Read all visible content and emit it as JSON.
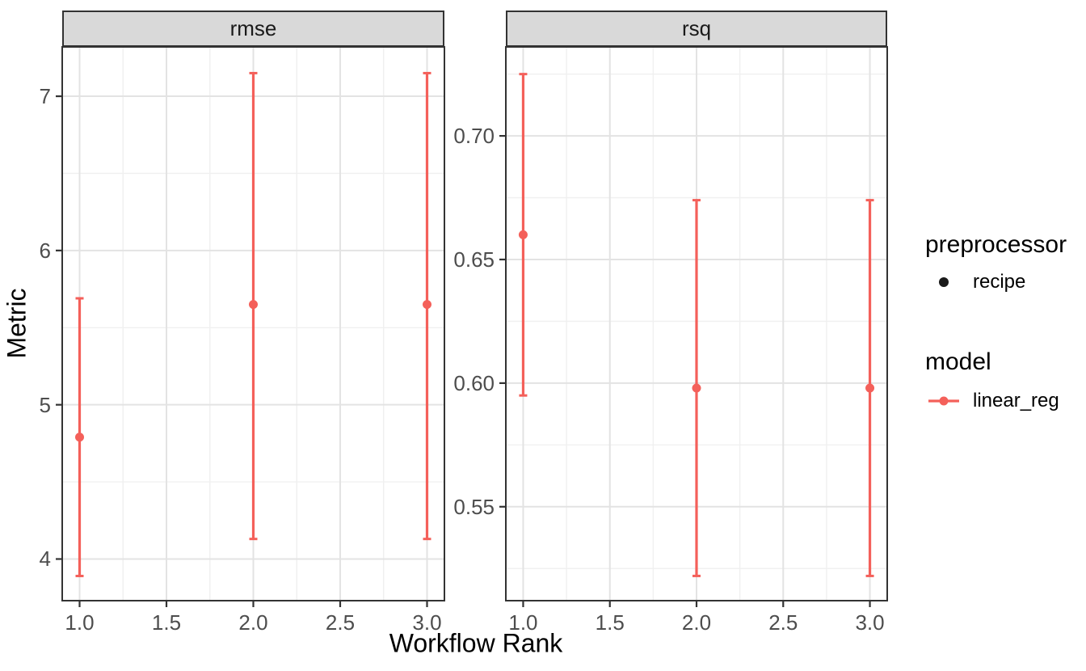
{
  "figure": {
    "x_axis_title": "Workflow Rank",
    "y_axis_title": "Metric"
  },
  "legend": {
    "position": "right",
    "groups": [
      {
        "title": "preprocessor",
        "items": [
          {
            "label": "recipe",
            "key": "point"
          }
        ]
      },
      {
        "title": "model",
        "items": [
          {
            "label": "linear_reg",
            "key": "point-line"
          }
        ]
      }
    ]
  },
  "colors": {
    "model_red": "#F4605A",
    "recipe_black": "#1A1A1A",
    "strip_fill": "#D9D9D9",
    "panel_border": "#333333",
    "grid_major": "#E3E3E3",
    "grid_minor": "#F0F0F0",
    "tick_text": "#4D4D4D",
    "panel_bg": "#FFFFFF"
  },
  "chart_data": [
    {
      "type": "scatter",
      "facet": "rmse",
      "series": [
        {
          "name": "linear_reg",
          "preprocessor": "recipe",
          "x": [
            1.0,
            2.0,
            3.0
          ],
          "y": [
            4.79,
            5.65,
            5.65
          ],
          "y_lo": [
            3.89,
            4.13,
            4.13
          ],
          "y_hi": [
            5.69,
            7.15,
            7.15
          ]
        }
      ],
      "xlabel": "Workflow Rank",
      "ylabel": "Metric",
      "xlim": [
        0.9,
        3.1
      ],
      "ylim": [
        3.73,
        7.32
      ],
      "x_ticks": {
        "values": [
          1.0,
          1.5,
          2.0,
          2.5,
          3.0
        ],
        "labels": [
          "1.0",
          "1.5",
          "2.0",
          "2.5",
          "3.0"
        ]
      },
      "y_ticks": {
        "values": [
          4,
          5,
          6,
          7
        ],
        "labels": [
          "4",
          "5",
          "6",
          "7"
        ]
      },
      "x_minor": [
        1.25,
        1.75,
        2.25,
        2.75
      ],
      "y_minor": [
        4.5,
        5.5,
        6.5
      ],
      "grid": true,
      "error_bars": true,
      "legend_position": "right"
    },
    {
      "type": "scatter",
      "facet": "rsq",
      "series": [
        {
          "name": "linear_reg",
          "preprocessor": "recipe",
          "x": [
            1.0,
            2.0,
            3.0
          ],
          "y": [
            0.66,
            0.598,
            0.598
          ],
          "y_lo": [
            0.595,
            0.522,
            0.522
          ],
          "y_hi": [
            0.725,
            0.674,
            0.674
          ]
        }
      ],
      "xlabel": "Workflow Rank",
      "ylabel": "Metric",
      "xlim": [
        0.9,
        3.1
      ],
      "ylim": [
        0.512,
        0.736
      ],
      "x_ticks": {
        "values": [
          1.0,
          1.5,
          2.0,
          2.5,
          3.0
        ],
        "labels": [
          "1.0",
          "1.5",
          "2.0",
          "2.5",
          "3.0"
        ]
      },
      "y_ticks": {
        "values": [
          0.55,
          0.6,
          0.65,
          0.7
        ],
        "labels": [
          "0.55",
          "0.60",
          "0.65",
          "0.70"
        ]
      },
      "x_minor": [
        1.25,
        1.75,
        2.25,
        2.75
      ],
      "y_minor": [
        0.525,
        0.575,
        0.625,
        0.675,
        0.725
      ],
      "grid": true,
      "error_bars": true,
      "legend_position": "right"
    }
  ]
}
